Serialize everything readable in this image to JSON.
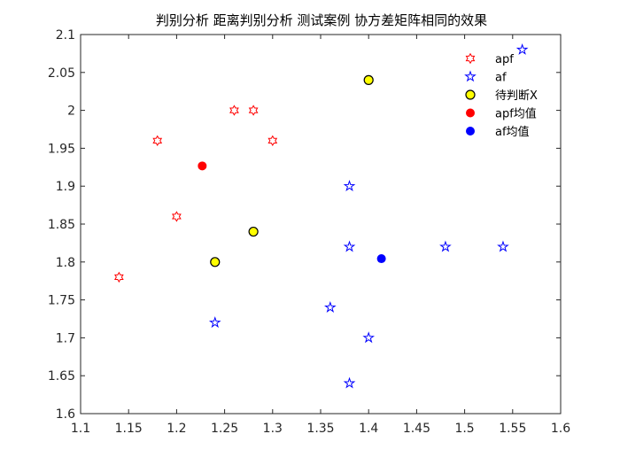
{
  "chart_data": {
    "type": "scatter",
    "title": "判别分析 距离判别分析 测试案例 协方差矩阵相同的效果",
    "xlabel": "",
    "ylabel": "",
    "xlim": [
      1.1,
      1.6
    ],
    "ylim": [
      1.6,
      2.1
    ],
    "xticks": [
      1.1,
      1.15,
      1.2,
      1.25,
      1.3,
      1.35,
      1.4,
      1.45,
      1.5,
      1.55,
      1.6
    ],
    "xtick_labels": [
      "1.1",
      "1.15",
      "1.2",
      "1.25",
      "1.3",
      "1.35",
      "1.4",
      "1.45",
      "1.5",
      "1.55",
      "1.6"
    ],
    "yticks": [
      1.6,
      1.65,
      1.7,
      1.75,
      1.8,
      1.85,
      1.9,
      1.95,
      2.0,
      2.05,
      2.1
    ],
    "ytick_labels": [
      "1.6",
      "1.65",
      "1.7",
      "1.75",
      "1.8",
      "1.85",
      "1.9",
      "1.95",
      "2",
      "2.05",
      "2.1"
    ],
    "grid": false,
    "legend_position": "top-right",
    "series": [
      {
        "name": "apf",
        "marker": "hexagram",
        "color": "#ff0000",
        "filled": false,
        "x": [
          1.14,
          1.18,
          1.2,
          1.26,
          1.28,
          1.3
        ],
        "y": [
          1.78,
          1.96,
          1.86,
          2.0,
          2.0,
          1.96
        ]
      },
      {
        "name": "af",
        "marker": "pentagram",
        "color": "#0000ff",
        "filled": false,
        "x": [
          1.24,
          1.36,
          1.38,
          1.38,
          1.38,
          1.4,
          1.48,
          1.54,
          1.56
        ],
        "y": [
          1.72,
          1.74,
          1.64,
          1.82,
          1.9,
          1.7,
          1.82,
          1.82,
          2.08
        ]
      },
      {
        "name": "待判断X",
        "marker": "circle",
        "color": "#ffff00",
        "edge_color": "#000000",
        "filled": true,
        "x": [
          1.24,
          1.28,
          1.4
        ],
        "y": [
          1.8,
          1.84,
          2.04
        ]
      },
      {
        "name": "apf均值",
        "marker": "dot",
        "color": "#ff0000",
        "filled": true,
        "x": [
          1.2267
        ],
        "y": [
          1.9267
        ]
      },
      {
        "name": "af均值",
        "marker": "dot",
        "color": "#0000ff",
        "filled": true,
        "x": [
          1.4133
        ],
        "y": [
          1.8044
        ]
      }
    ]
  }
}
